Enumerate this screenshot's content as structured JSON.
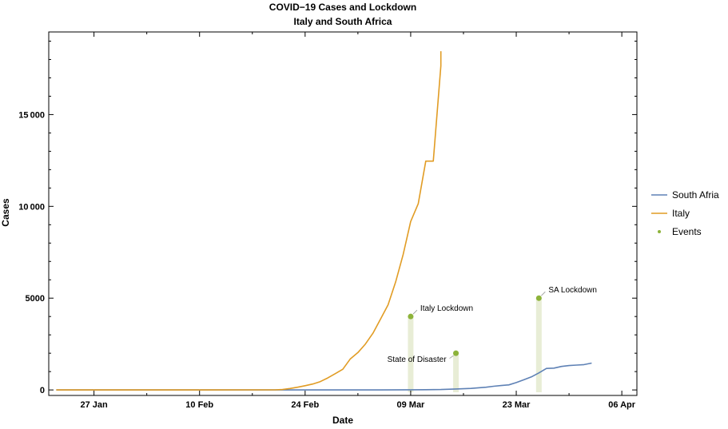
{
  "chart_data": {
    "type": "line",
    "title": "COVID−19 Cases and Lockdown",
    "subtitle": "Italy and South Africa",
    "xlabel": "Date",
    "ylabel": "Cases",
    "xlim": [
      "2020-01-21",
      "2020-04-08"
    ],
    "ylim": [
      -300,
      19500
    ],
    "x_ticks": [
      {
        "date": "2020-01-27",
        "label": "27 Jan"
      },
      {
        "date": "2020-02-10",
        "label": "10 Feb"
      },
      {
        "date": "2020-02-24",
        "label": "24 Feb"
      },
      {
        "date": "2020-03-09",
        "label": "09 Mar"
      },
      {
        "date": "2020-03-23",
        "label": "23 Mar"
      },
      {
        "date": "2020-04-06",
        "label": "06 Apr"
      }
    ],
    "y_ticks": [
      {
        "value": 0,
        "label": "0"
      },
      {
        "value": 5000,
        "label": "5000"
      },
      {
        "value": 10000,
        "label": "10 000"
      },
      {
        "value": 15000,
        "label": "15 000"
      }
    ],
    "grid": false,
    "legend_position": "right",
    "series": [
      {
        "name": "South Afria",
        "color": "#5e81b5",
        "points": [
          [
            "2020-01-22",
            0
          ],
          [
            "2020-03-05",
            1
          ],
          [
            "2020-03-09",
            7
          ],
          [
            "2020-03-11",
            13
          ],
          [
            "2020-03-13",
            24
          ],
          [
            "2020-03-15",
            51
          ],
          [
            "2020-03-17",
            85
          ],
          [
            "2020-03-18",
            116
          ],
          [
            "2020-03-19",
            150
          ],
          [
            "2020-03-20",
            202
          ],
          [
            "2020-03-21",
            240
          ],
          [
            "2020-03-22",
            274
          ],
          [
            "2020-03-23",
            402
          ],
          [
            "2020-03-24",
            554
          ],
          [
            "2020-03-25",
            709
          ],
          [
            "2020-03-26",
            927
          ],
          [
            "2020-03-27",
            1170
          ],
          [
            "2020-03-28",
            1187
          ],
          [
            "2020-03-29",
            1280
          ],
          [
            "2020-03-30",
            1326
          ],
          [
            "2020-03-31",
            1353
          ],
          [
            "2020-04-01",
            1380
          ],
          [
            "2020-04-02",
            1462
          ]
        ]
      },
      {
        "name": "Italy",
        "color": "#e19c24",
        "points": [
          [
            "2020-01-22",
            0
          ],
          [
            "2020-01-31",
            2
          ],
          [
            "2020-02-20",
            3
          ],
          [
            "2020-02-21",
            20
          ],
          [
            "2020-02-22",
            79
          ],
          [
            "2020-02-23",
            150
          ],
          [
            "2020-02-24",
            229
          ],
          [
            "2020-02-25",
            322
          ],
          [
            "2020-02-26",
            453
          ],
          [
            "2020-02-27",
            655
          ],
          [
            "2020-02-28",
            888
          ],
          [
            "2020-02-29",
            1128
          ],
          [
            "2020-03-01",
            1694
          ],
          [
            "2020-03-02",
            2036
          ],
          [
            "2020-03-03",
            2502
          ],
          [
            "2020-03-04",
            3089
          ],
          [
            "2020-03-05",
            3858
          ],
          [
            "2020-03-06",
            4636
          ],
          [
            "2020-03-07",
            5883
          ],
          [
            "2020-03-08",
            7375
          ],
          [
            "2020-03-09",
            9172
          ],
          [
            "2020-03-10",
            10149
          ],
          [
            "2020-03-11",
            12462
          ],
          [
            "2020-03-12",
            12462
          ],
          [
            "2020-03-13",
            17660
          ],
          [
            "2020-03-13",
            18450
          ]
        ]
      }
    ],
    "events": {
      "name": "Events",
      "color": "#8db33a",
      "points": [
        {
          "date": "2020-03-09",
          "value": 4000,
          "label": "Italy Lockdown"
        },
        {
          "date": "2020-03-15",
          "value": 2000,
          "label": "State of Disaster"
        },
        {
          "date": "2020-03-26",
          "value": 5000,
          "label": "SA Lockdown"
        }
      ]
    }
  }
}
